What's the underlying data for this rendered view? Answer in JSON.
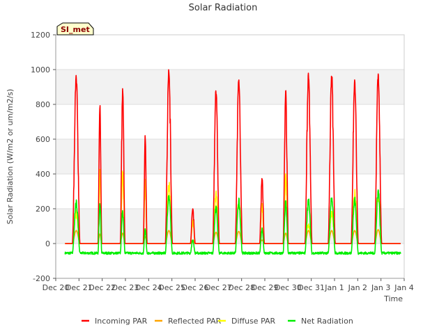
{
  "chart_data": {
    "type": "line",
    "title": "Solar Radiation",
    "xlabel": "Time",
    "ylabel": "Solar Radiation (W/m2 or um/m2/s)",
    "ylim": [
      -200,
      1200
    ],
    "xlim": [
      0,
      15
    ],
    "yticks": [
      -200,
      0,
      200,
      400,
      600,
      800,
      1000,
      1200
    ],
    "xticks": [
      {
        "label": "Dec 20",
        "x": 0
      },
      {
        "label": "Dec 21",
        "x": 1
      },
      {
        "label": "Dec 22",
        "x": 2
      },
      {
        "label": "Dec 23",
        "x": 3
      },
      {
        "label": "Dec 24",
        "x": 4
      },
      {
        "label": "Dec 25",
        "x": 5
      },
      {
        "label": "Dec 26",
        "x": 6
      },
      {
        "label": "Dec 27",
        "x": 7
      },
      {
        "label": "Dec 28",
        "x": 8
      },
      {
        "label": "Dec 29",
        "x": 9
      },
      {
        "label": "Dec 30",
        "x": 10
      },
      {
        "label": "Dec 31",
        "x": 11
      },
      {
        "label": "Jan 1",
        "x": 12
      },
      {
        "label": "Jan 2",
        "x": 13
      },
      {
        "label": "Jan 3",
        "x": 14
      },
      {
        "label": "Jan 4",
        "x": 15
      }
    ],
    "site_label": "SI_met",
    "legend_position": "bottom",
    "x_start": 0.4,
    "x_end": 14.85,
    "night_net": -55,
    "days": [
      {
        "center": 0.88,
        "width": 0.16,
        "incoming": 980,
        "reflected": 75,
        "diffuse": 200,
        "net": 255
      },
      {
        "center": 1.9,
        "width": 0.08,
        "incoming": 820,
        "reflected": 55,
        "diffuse": 450,
        "net": 245
      },
      {
        "center": 2.88,
        "width": 0.1,
        "incoming": 900,
        "reflected": 60,
        "diffuse": 465,
        "net": 200
      },
      {
        "center": 3.85,
        "width": 0.08,
        "incoming": 630,
        "reflected": 40,
        "diffuse": 400,
        "net": 90
      },
      {
        "center": 4.87,
        "width": 0.15,
        "incoming": 1020,
        "reflected": 75,
        "diffuse": 370,
        "net": 300
      },
      {
        "center": 5.9,
        "width": 0.1,
        "incoming": 205,
        "reflected": 20,
        "diffuse": 150,
        "net": 25
      },
      {
        "center": 6.9,
        "width": 0.14,
        "incoming": 900,
        "reflected": 65,
        "diffuse": 310,
        "net": 225
      },
      {
        "center": 7.88,
        "width": 0.15,
        "incoming": 965,
        "reflected": 70,
        "diffuse": 260,
        "net": 265
      },
      {
        "center": 8.88,
        "width": 0.1,
        "incoming": 385,
        "reflected": 20,
        "diffuse": 250,
        "net": 95
      },
      {
        "center": 9.9,
        "width": 0.11,
        "incoming": 895,
        "reflected": 60,
        "diffuse": 420,
        "net": 265
      },
      {
        "center": 10.88,
        "width": 0.15,
        "incoming": 985,
        "reflected": 75,
        "diffuse": 120,
        "net": 265
      },
      {
        "center": 11.88,
        "width": 0.15,
        "incoming": 995,
        "reflected": 75,
        "diffuse": 200,
        "net": 290
      },
      {
        "center": 12.87,
        "width": 0.15,
        "incoming": 950,
        "reflected": 75,
        "diffuse": 320,
        "net": 270
      },
      {
        "center": 13.88,
        "width": 0.15,
        "incoming": 995,
        "reflected": 80,
        "diffuse": 310,
        "net": 320
      }
    ],
    "series": [
      {
        "name": "Incoming PAR",
        "key": "incoming",
        "color": "#ff0000"
      },
      {
        "name": "Reflected PAR",
        "key": "reflected",
        "color": "#ffa500"
      },
      {
        "name": "Diffuse PAR",
        "key": "diffuse",
        "color": "#ffff00"
      },
      {
        "name": "Net Radiation",
        "key": "net",
        "color": "#00ee00"
      }
    ]
  }
}
